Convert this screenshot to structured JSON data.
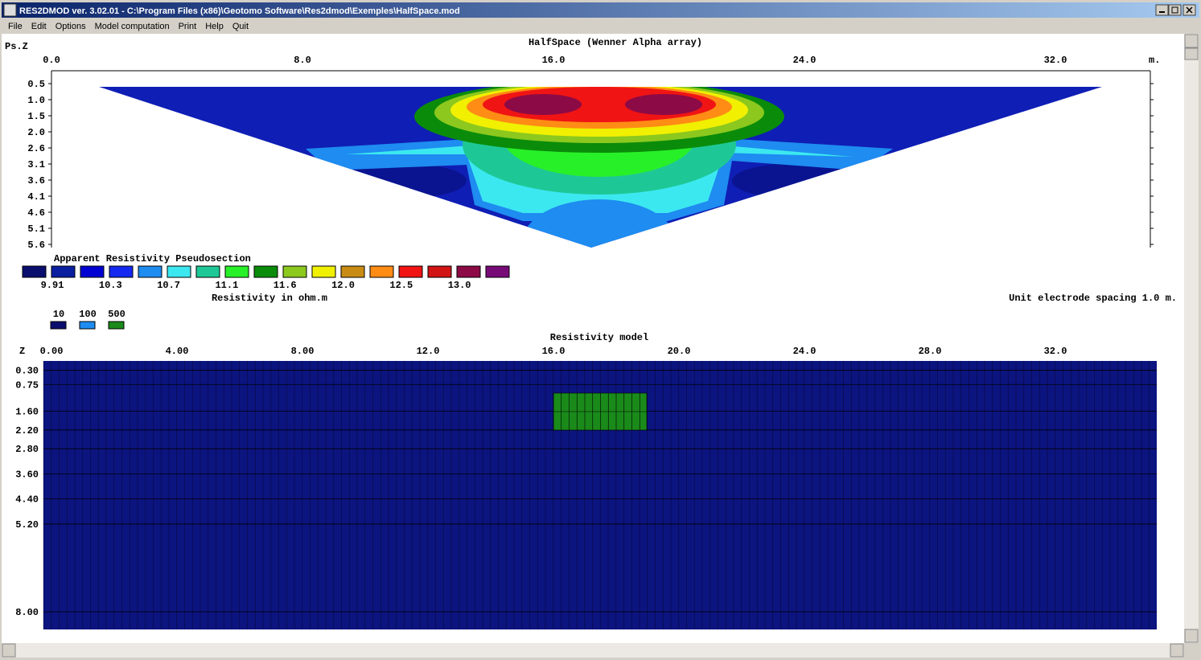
{
  "window": {
    "title": "RES2DMOD ver. 3.02.01 - C:\\Program Files (x86)\\Geotomo Software\\Res2dmod\\Exemples\\HalfSpace.mod",
    "menu": [
      "File",
      "Edit",
      "Options",
      "Model computation",
      "Print",
      "Help",
      "Quit"
    ]
  },
  "pseudosection": {
    "title": "HalfSpace (Wenner Alpha array)",
    "depth_label": "Ps.Z",
    "x_ticks": [
      "0.0",
      "8.0",
      "16.0",
      "24.0",
      "32.0"
    ],
    "x_unit": "m.",
    "depth_ticks": [
      "0.5",
      "1.0",
      "1.5",
      "2.0",
      "2.6",
      "3.1",
      "3.6",
      "4.1",
      "4.6",
      "5.1",
      "5.6"
    ],
    "legend_title": "Apparent Resistivity Pseudosection",
    "legend_colors": [
      "#0a0f6e",
      "#0a1ea0",
      "#0000d2",
      "#1428f0",
      "#1e8cf0",
      "#3ce8f0",
      "#1ec896",
      "#28f028",
      "#0a8c0a",
      "#8cc81e",
      "#f0f000",
      "#c88c14",
      "#ff8c14",
      "#f01414",
      "#d21414",
      "#8c0a46",
      "#780a78"
    ],
    "legend_labels": [
      "9.91",
      "10.3",
      "10.7",
      "11.1",
      "11.6",
      "12.0",
      "12.5",
      "13.0"
    ],
    "unit_label": "Resistivity in ohm.m",
    "spacing_note": "Unit electrode spacing 1.0 m."
  },
  "model": {
    "title": "Resistivity model",
    "depth_label": "Z",
    "x_ticks": [
      "0.00",
      "4.00",
      "8.00",
      "12.0",
      "16.0",
      "20.0",
      "24.0",
      "28.0",
      "32.0"
    ],
    "depth_ticks": [
      "0.30",
      "0.75",
      "1.60",
      "2.20",
      "2.80",
      "3.60",
      "4.40",
      "5.20",
      "8.00"
    ],
    "legend": [
      {
        "label": "10",
        "color": "#0a0f6e"
      },
      {
        "label": "100",
        "color": "#1e8cf0"
      },
      {
        "label": "500",
        "color": "#1a8a1a"
      }
    ],
    "background_color": "#0c1480",
    "block_color": "#1a8a1a"
  }
}
